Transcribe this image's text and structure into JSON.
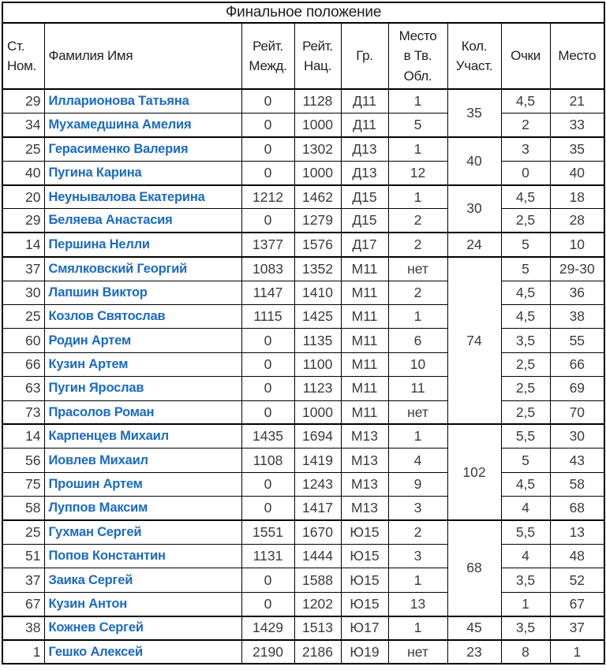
{
  "chart_data": {
    "type": "table",
    "title": "Финальное положение",
    "columns": [
      "Ст.\nНом.",
      "Фамилия Имя",
      "Рейт.\nМежд.",
      "Рейт.\nНац.",
      "Гр.",
      "Место\nв Тв.\nОбл.",
      "Кол.\nУчаст.",
      "Очки",
      "Место"
    ],
    "rows": [
      {
        "num": "29",
        "name": "Илларионова Татьяна",
        "intl": "0",
        "nat": "1128",
        "grp": "Д11",
        "place_region": "1",
        "points": "4,5",
        "place": "21"
      },
      {
        "num": "34",
        "name": "Мухамедшина Амелия",
        "intl": "0",
        "nat": "1000",
        "grp": "Д11",
        "place_region": "5",
        "points": "2",
        "place": "33"
      },
      {
        "num": "25",
        "name": "Герасименко Валерия",
        "intl": "0",
        "nat": "1302",
        "grp": "Д13",
        "place_region": "1",
        "points": "3",
        "place": "35"
      },
      {
        "num": "40",
        "name": "Пугина Карина",
        "intl": "0",
        "nat": "1000",
        "grp": "Д13",
        "place_region": "12",
        "points": "0",
        "place": "40"
      },
      {
        "num": "20",
        "name": "Неунывалова Екатерина",
        "intl": "1212",
        "nat": "1462",
        "grp": "Д15",
        "place_region": "1",
        "points": "4,5",
        "place": "18"
      },
      {
        "num": "29",
        "name": "Беляева Анастасия",
        "intl": "0",
        "nat": "1279",
        "grp": "Д15",
        "place_region": "2",
        "points": "2,5",
        "place": "28"
      },
      {
        "num": "14",
        "name": "Першина Нелли",
        "intl": "1377",
        "nat": "1576",
        "grp": "Д17",
        "place_region": "2",
        "points": "5",
        "place": "10"
      },
      {
        "num": "37",
        "name": "Смялковский Георгий",
        "intl": "1083",
        "nat": "1352",
        "grp": "М11",
        "place_region": "нет",
        "points": "5",
        "place": "29-30"
      },
      {
        "num": "30",
        "name": "Лапшин Виктор",
        "intl": "1147",
        "nat": "1410",
        "grp": "М11",
        "place_region": "2",
        "points": "4,5",
        "place": "36"
      },
      {
        "num": "25",
        "name": "Козлов Святослав",
        "intl": "1115",
        "nat": "1425",
        "grp": "М11",
        "place_region": "1",
        "points": "4,5",
        "place": "38"
      },
      {
        "num": "60",
        "name": "Родин Артем",
        "intl": "0",
        "nat": "1135",
        "grp": "М11",
        "place_region": "6",
        "points": "3,5",
        "place": "55"
      },
      {
        "num": "66",
        "name": "Кузин Артем",
        "intl": "0",
        "nat": "1100",
        "grp": "М11",
        "place_region": "10",
        "points": "2,5",
        "place": "66"
      },
      {
        "num": "63",
        "name": "Пугин Ярослав",
        "intl": "0",
        "nat": "1123",
        "grp": "М11",
        "place_region": "11",
        "points": "2,5",
        "place": "69"
      },
      {
        "num": "73",
        "name": "Прасолов Роман",
        "intl": "0",
        "nat": "1000",
        "grp": "М11",
        "place_region": "нет",
        "points": "2,5",
        "place": "70"
      },
      {
        "num": "14",
        "name": "Карпенцев Михаил",
        "intl": "1435",
        "nat": "1694",
        "grp": "М13",
        "place_region": "1",
        "points": "5,5",
        "place": "30"
      },
      {
        "num": "56",
        "name": "Иовлев Михаил",
        "intl": "1108",
        "nat": "1419",
        "grp": "М13",
        "place_region": "4",
        "points": "5",
        "place": "43"
      },
      {
        "num": "75",
        "name": "Прошин Артем",
        "intl": "0",
        "nat": "1243",
        "grp": "М13",
        "place_region": "9",
        "points": "4,5",
        "place": "58"
      },
      {
        "num": "58",
        "name": "Луппов Максим",
        "intl": "0",
        "nat": "1417",
        "grp": "М13",
        "place_region": "3",
        "points": "4",
        "place": "68"
      },
      {
        "num": "25",
        "name": "Гухман Сергей",
        "intl": "1551",
        "nat": "1670",
        "grp": "Ю15",
        "place_region": "2",
        "points": "5,5",
        "place": "13"
      },
      {
        "num": "51",
        "name": "Попов Константин",
        "intl": "1131",
        "nat": "1444",
        "grp": "Ю15",
        "place_region": "3",
        "points": "4",
        "place": "48"
      },
      {
        "num": "37",
        "name": "Заика Сергей",
        "intl": "0",
        "nat": "1588",
        "grp": "Ю15",
        "place_region": "1",
        "points": "3,5",
        "place": "52"
      },
      {
        "num": "67",
        "name": "Кузин Антон",
        "intl": "0",
        "nat": "1202",
        "grp": "Ю15",
        "place_region": "13",
        "points": "1",
        "place": "67"
      },
      {
        "num": "38",
        "name": "Кожнев Сергей",
        "intl": "1429",
        "nat": "1513",
        "grp": "Ю17",
        "place_region": "1",
        "points": "3,5",
        "place": "37"
      },
      {
        "num": "1",
        "name": "Гешко Алексей",
        "intl": "2190",
        "nat": "2186",
        "grp": "Ю19",
        "place_region": "нет",
        "points": "8",
        "place": "1"
      }
    ],
    "groups": [
      {
        "start": 0,
        "count": 2,
        "participants": "35"
      },
      {
        "start": 2,
        "count": 2,
        "participants": "40"
      },
      {
        "start": 4,
        "count": 2,
        "participants": "30"
      },
      {
        "start": 6,
        "count": 1,
        "participants": "24"
      },
      {
        "start": 7,
        "count": 7,
        "participants": "74"
      },
      {
        "start": 14,
        "count": 4,
        "participants": "102"
      },
      {
        "start": 18,
        "count": 4,
        "participants": "68"
      },
      {
        "start": 22,
        "count": 1,
        "participants": "45"
      },
      {
        "start": 23,
        "count": 1,
        "participants": "23"
      }
    ],
    "layout": {
      "merged_column_index": 6,
      "grid": "on",
      "group_separator": "thick-border"
    }
  },
  "theme": {
    "name_color": "#1b6ac6",
    "number_color": "#3b3b3b",
    "header_color": "#1f1f1f",
    "border_color": "#000000",
    "background": "#ffffff"
  }
}
